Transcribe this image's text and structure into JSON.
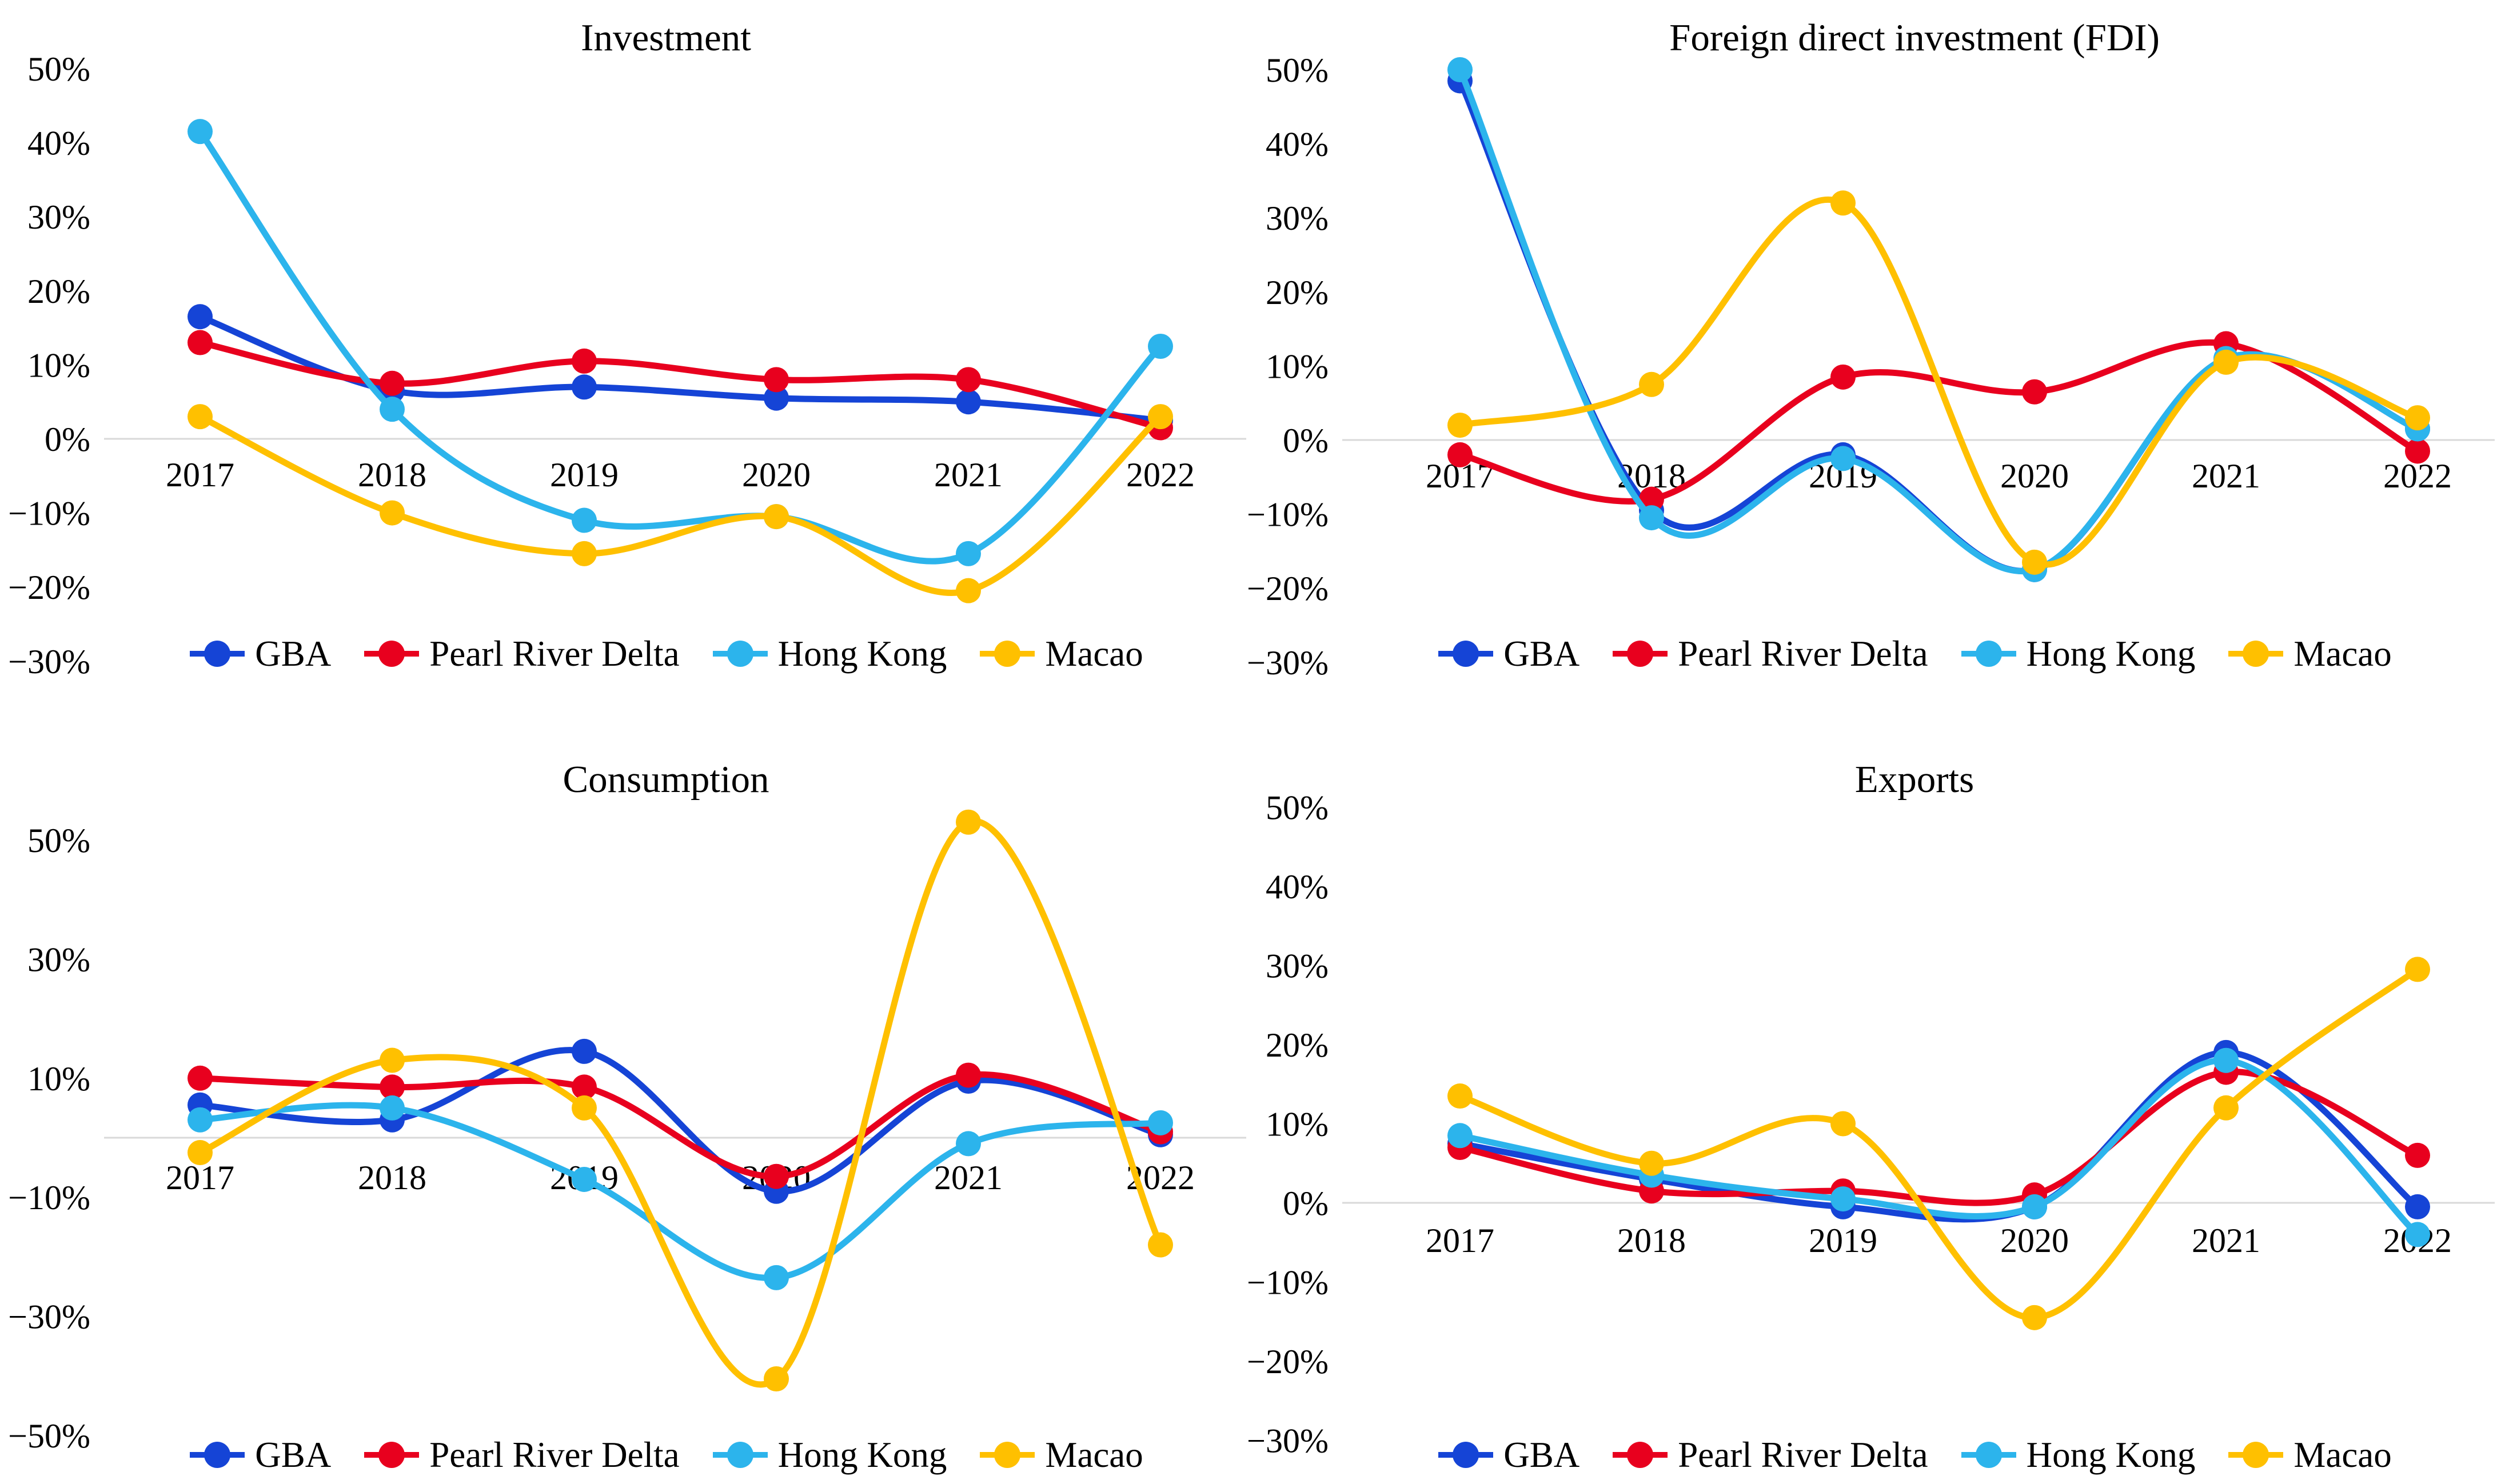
{
  "figure": {
    "background": "#ffffff",
    "text_color": "#000000",
    "gridline_color": "#d9d9d9",
    "palette": {
      "GBA": "#1544d6",
      "Pearl River Delta": "#e8001e",
      "Hong Kong": "#2cb4ec",
      "Macao": "#ffc000"
    }
  },
  "legend": {
    "items": [
      "GBA",
      "Pearl River Delta",
      "Hong Kong",
      "Macao"
    ]
  },
  "chart_data": [
    {
      "type": "line",
      "position": "top-left",
      "title": "Investment",
      "x": [
        "2017",
        "2018",
        "2019",
        "2020",
        "2021",
        "2022"
      ],
      "y_axis": {
        "min": -30,
        "max": 50,
        "tick_step": 10,
        "unit": "%",
        "tick_labels": [
          "50%",
          "40%",
          "30%",
          "20%",
          "10%",
          "0%",
          "−10%",
          "−20%",
          "−30%"
        ],
        "tick_values": [
          50,
          40,
          30,
          20,
          10,
          0,
          -10,
          -20,
          -30
        ],
        "zero_gridline": true
      },
      "legend_position": "bottom",
      "series": [
        {
          "name": "GBA",
          "values": [
            16.5,
            6.5,
            7,
            5.5,
            5,
            2.5
          ]
        },
        {
          "name": "Pearl River Delta",
          "values": [
            13,
            7.5,
            10.5,
            8,
            8,
            1.5
          ]
        },
        {
          "name": "Hong Kong",
          "values": [
            41.5,
            4,
            -11,
            -10.5,
            -15.5,
            12.5
          ]
        },
        {
          "name": "Macao",
          "values": [
            3,
            -10,
            -15.5,
            -10.5,
            -20.5,
            3
          ]
        }
      ]
    },
    {
      "type": "line",
      "position": "top-right",
      "title": "Foreign direct investment (FDI)",
      "x": [
        "2017",
        "2018",
        "2019",
        "2020",
        "2021",
        "2022"
      ],
      "y_axis": {
        "min": -30,
        "max": 50,
        "tick_step": 10,
        "unit": "%",
        "tick_labels": [
          "50%",
          "40%",
          "30%",
          "20%",
          "10%",
          "0%",
          "−10%",
          "−20%",
          "−30%"
        ],
        "tick_values": [
          50,
          40,
          30,
          20,
          10,
          0,
          -10,
          -20,
          -30
        ],
        "zero_gridline": true
      },
      "legend_position": "bottom",
      "series": [
        {
          "name": "GBA",
          "values": [
            48.5,
            -9.5,
            -2,
            -17.5,
            11,
            1.5
          ]
        },
        {
          "name": "Pearl River Delta",
          "values": [
            -2,
            -8,
            8.5,
            6.5,
            13,
            -1.5
          ]
        },
        {
          "name": "Hong Kong",
          "values": [
            50,
            -10.5,
            -2.5,
            -17.5,
            11,
            1.5
          ]
        },
        {
          "name": "Macao",
          "values": [
            2,
            7.5,
            32,
            -16.5,
            10.5,
            3
          ]
        }
      ]
    },
    {
      "type": "line",
      "position": "bottom-left",
      "title": "Consumption",
      "x": [
        "2017",
        "2018",
        "2019",
        "2020",
        "2021",
        "2022"
      ],
      "y_axis": {
        "min": -50,
        "max": 50,
        "tick_step": 20,
        "unit": "%",
        "tick_labels": [
          "50%",
          "30%",
          "10%",
          "−10%",
          "−30%",
          "−50%"
        ],
        "tick_values": [
          50,
          30,
          10,
          -10,
          -30,
          -50
        ],
        "zero_gridline": true
      },
      "legend_position": "bottom",
      "series": [
        {
          "name": "GBA",
          "values": [
            5.5,
            3,
            14.5,
            -9,
            9.5,
            0.5
          ]
        },
        {
          "name": "Pearl River Delta",
          "values": [
            10,
            8.5,
            8.5,
            -6.5,
            10.5,
            1
          ]
        },
        {
          "name": "Hong Kong",
          "values": [
            3,
            5,
            -7,
            -23.5,
            -1,
            2.5
          ]
        },
        {
          "name": "Macao",
          "values": [
            -2.5,
            13,
            5,
            -40.5,
            53,
            -18
          ]
        }
      ]
    },
    {
      "type": "line",
      "position": "bottom-right",
      "title": "Exports",
      "x": [
        "2017",
        "2018",
        "2019",
        "2020",
        "2021",
        "2022"
      ],
      "y_axis": {
        "min": -30,
        "max": 50,
        "tick_step": 10,
        "unit": "%",
        "tick_labels": [
          "50%",
          "40%",
          "30%",
          "20%",
          "10%",
          "0%",
          "−10%",
          "−20%",
          "−30%"
        ],
        "tick_values": [
          50,
          40,
          30,
          20,
          10,
          0,
          -10,
          -20,
          -30
        ],
        "zero_gridline": true
      },
      "legend_position": "bottom",
      "series": [
        {
          "name": "GBA",
          "values": [
            7.5,
            3,
            -0.5,
            -0.5,
            19,
            -0.5
          ]
        },
        {
          "name": "Pearl River Delta",
          "values": [
            7,
            1.5,
            1.5,
            1,
            16.5,
            6
          ]
        },
        {
          "name": "Hong Kong",
          "values": [
            8.5,
            3.5,
            0.5,
            -0.5,
            18,
            -4
          ]
        },
        {
          "name": "Macao",
          "values": [
            13.5,
            5,
            10,
            -14.5,
            12,
            29.5
          ]
        }
      ]
    }
  ]
}
